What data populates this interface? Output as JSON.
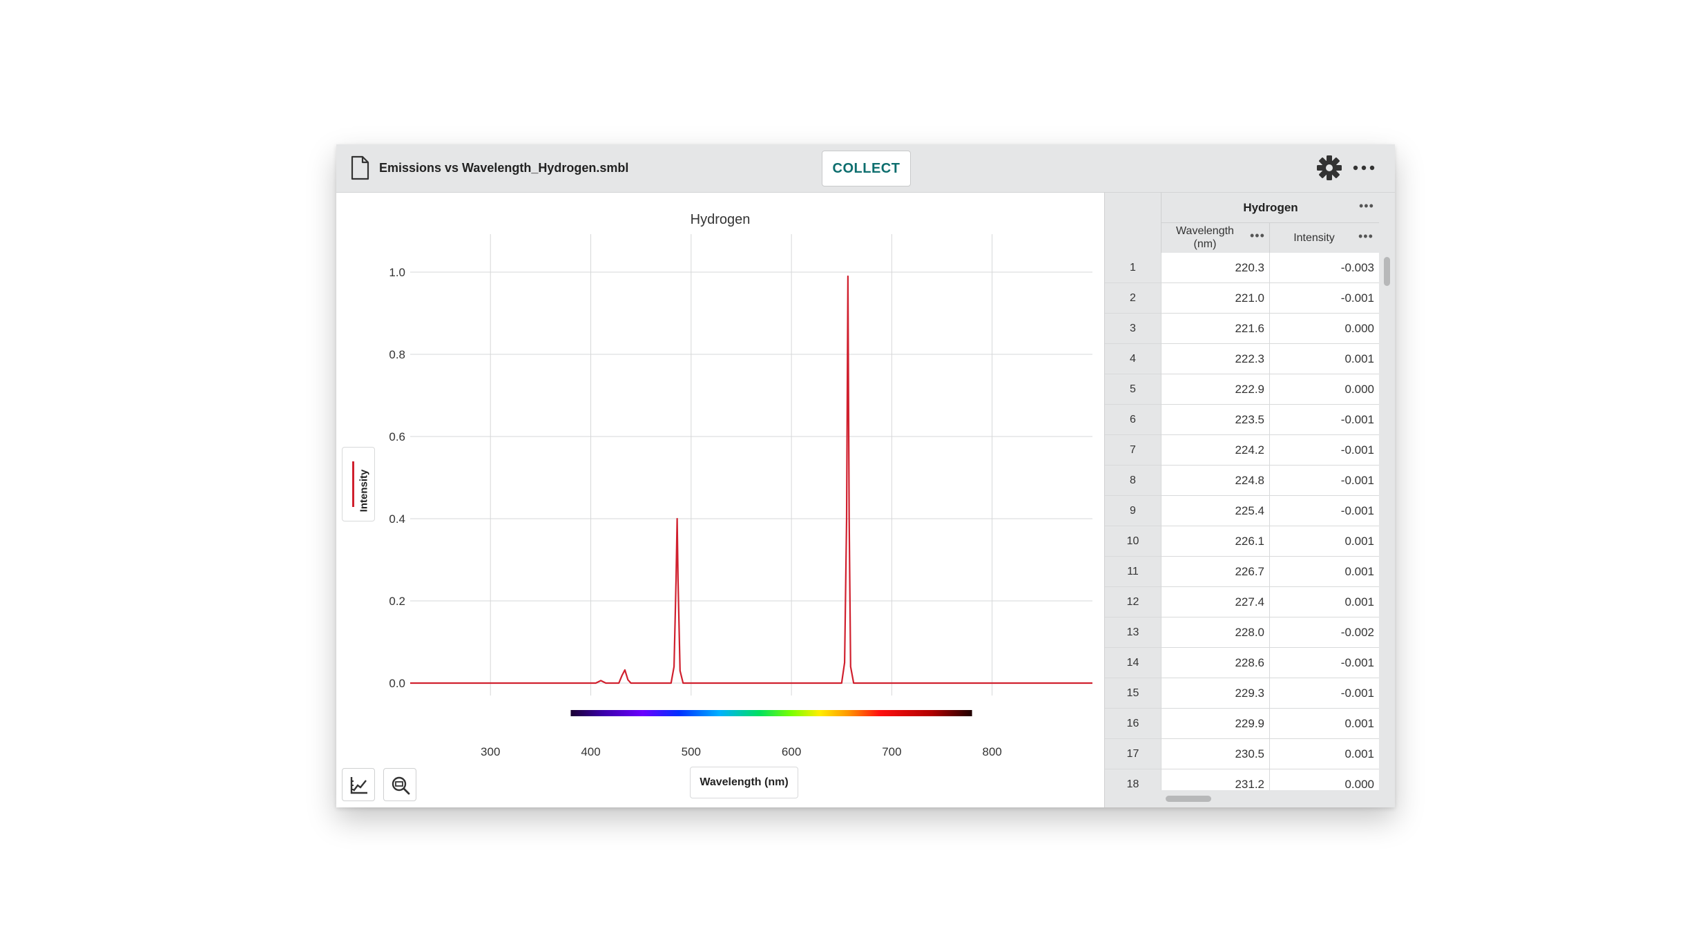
{
  "toolbar": {
    "file_icon": "document-icon",
    "file_name": "Emissions vs Wavelength_Hydrogen.smbl",
    "collect_label": "COLLECT",
    "settings_icon": "gear-icon",
    "more_icon": "more-options-icon"
  },
  "graph": {
    "title": "Hydrogen",
    "y_legend_label": "Intensity",
    "x_legend_label": "Wavelength (nm)",
    "trace_color": "#d0202e",
    "tools": [
      "graph-options-icon",
      "zoom-icon"
    ]
  },
  "chart_data": {
    "type": "line",
    "title": "Hydrogen",
    "xlabel": "Wavelength (nm)",
    "ylabel": "Intensity",
    "xlim": [
      220,
      900
    ],
    "ylim": [
      0.0,
      1.0
    ],
    "x_ticks": [
      "300",
      "400",
      "500",
      "600",
      "700",
      "800"
    ],
    "y_ticks": [
      "0.0",
      "0.2",
      "0.4",
      "0.6",
      "0.8",
      "1.0"
    ],
    "grid": true,
    "spectrum_bar": {
      "from_nm": 380,
      "to_nm": 780
    },
    "series": [
      {
        "name": "Intensity",
        "color": "#d0202e",
        "points": [
          [
            220,
            0.0
          ],
          [
            300,
            0.0
          ],
          [
            380,
            0.0
          ],
          [
            405,
            0.0
          ],
          [
            410,
            0.006
          ],
          [
            415,
            0.0
          ],
          [
            428,
            0.0
          ],
          [
            431,
            0.018
          ],
          [
            434,
            0.032
          ],
          [
            437,
            0.008
          ],
          [
            440,
            0.0
          ],
          [
            480,
            0.0
          ],
          [
            483,
            0.04
          ],
          [
            485,
            0.25
          ],
          [
            486.1,
            0.4
          ],
          [
            487,
            0.25
          ],
          [
            489,
            0.03
          ],
          [
            492,
            0.0
          ],
          [
            650,
            0.0
          ],
          [
            653,
            0.05
          ],
          [
            655,
            0.4
          ],
          [
            656.3,
            0.99
          ],
          [
            657.5,
            0.4
          ],
          [
            659,
            0.04
          ],
          [
            662,
            0.0
          ],
          [
            750,
            0.0
          ],
          [
            900,
            0.0
          ]
        ]
      }
    ]
  },
  "table": {
    "dataset_name": "Hydrogen",
    "columns": [
      {
        "label": "Wavelength\n(nm)"
      },
      {
        "label": "Intensity"
      }
    ],
    "rows": [
      {
        "index": "1",
        "wavelength": "220.3",
        "intensity": "-0.003"
      },
      {
        "index": "2",
        "wavelength": "221.0",
        "intensity": "-0.001"
      },
      {
        "index": "3",
        "wavelength": "221.6",
        "intensity": "0.000"
      },
      {
        "index": "4",
        "wavelength": "222.3",
        "intensity": "0.001"
      },
      {
        "index": "5",
        "wavelength": "222.9",
        "intensity": "0.000"
      },
      {
        "index": "6",
        "wavelength": "223.5",
        "intensity": "-0.001"
      },
      {
        "index": "7",
        "wavelength": "224.2",
        "intensity": "-0.001"
      },
      {
        "index": "8",
        "wavelength": "224.8",
        "intensity": "-0.001"
      },
      {
        "index": "9",
        "wavelength": "225.4",
        "intensity": "-0.001"
      },
      {
        "index": "10",
        "wavelength": "226.1",
        "intensity": "0.001"
      },
      {
        "index": "11",
        "wavelength": "226.7",
        "intensity": "0.001"
      },
      {
        "index": "12",
        "wavelength": "227.4",
        "intensity": "0.001"
      },
      {
        "index": "13",
        "wavelength": "228.0",
        "intensity": "-0.002"
      },
      {
        "index": "14",
        "wavelength": "228.6",
        "intensity": "-0.001"
      },
      {
        "index": "15",
        "wavelength": "229.3",
        "intensity": "-0.001"
      },
      {
        "index": "16",
        "wavelength": "229.9",
        "intensity": "0.001"
      },
      {
        "index": "17",
        "wavelength": "230.5",
        "intensity": "0.001"
      },
      {
        "index": "18",
        "wavelength": "231.2",
        "intensity": "0.000"
      }
    ]
  }
}
